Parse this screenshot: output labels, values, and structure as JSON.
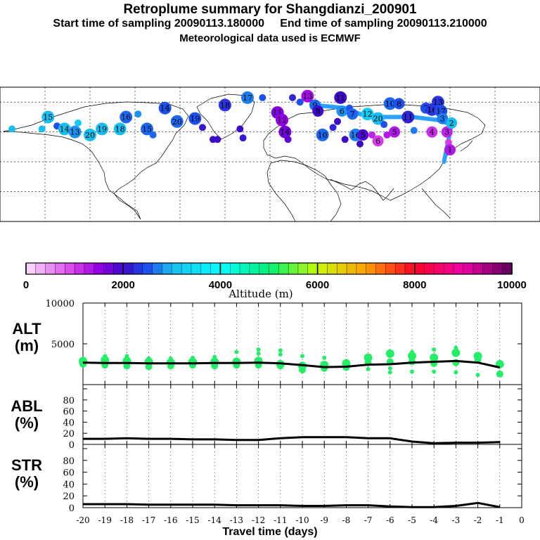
{
  "header": {
    "title": "Retroplume summary for Shangdianzi_200901",
    "line2": "Start time of sampling 20090113.180000     End time of sampling 20090113.210000",
    "line3": "Meteorological data used is ECMWF"
  },
  "map": {
    "markers": [
      {
        "lon": -172,
        "lat": 62,
        "alt": 3000,
        "label": ""
      },
      {
        "lon": -152,
        "lat": 62,
        "alt": 3000,
        "label": ""
      },
      {
        "lon": -148,
        "lat": 70,
        "alt": 3000,
        "label": "15"
      },
      {
        "lon": -142,
        "lat": 64,
        "alt": 2500,
        "label": ""
      },
      {
        "lon": -137,
        "lat": 62,
        "alt": 3000,
        "label": "14"
      },
      {
        "lon": -130,
        "lat": 60,
        "alt": 2800,
        "label": "13"
      },
      {
        "lon": -128,
        "lat": 66,
        "alt": 3200,
        "label": ""
      },
      {
        "lon": -120,
        "lat": 58,
        "alt": 3000,
        "label": "20"
      },
      {
        "lon": -112,
        "lat": 62,
        "alt": 3000,
        "label": "19"
      },
      {
        "lon": -100,
        "lat": 62,
        "alt": 3000,
        "label": "18"
      },
      {
        "lon": -96,
        "lat": 70,
        "alt": 2600,
        "label": "16"
      },
      {
        "lon": -88,
        "lat": 72,
        "alt": 2800,
        "label": ""
      },
      {
        "lon": -82,
        "lat": 62,
        "alt": 2600,
        "label": "15"
      },
      {
        "lon": -78,
        "lat": 58,
        "alt": 2600,
        "label": ""
      },
      {
        "lon": -70,
        "lat": 76,
        "alt": 2500,
        "label": "14"
      },
      {
        "lon": -62,
        "lat": 67,
        "alt": 2600,
        "label": "20"
      },
      {
        "lon": -50,
        "lat": 69,
        "alt": 2500,
        "label": "19"
      },
      {
        "lon": -45,
        "lat": 63,
        "alt": 2100,
        "label": ""
      },
      {
        "lon": -38,
        "lat": 55,
        "alt": 2000,
        "label": ""
      },
      {
        "lon": -35,
        "lat": 55,
        "alt": 2000,
        "label": ""
      },
      {
        "lon": -30,
        "lat": 78,
        "alt": 2300,
        "label": "18"
      },
      {
        "lon": -20,
        "lat": 62,
        "alt": 2000,
        "label": ""
      },
      {
        "lon": -18,
        "lat": 56,
        "alt": 2100,
        "label": ""
      },
      {
        "lon": -15,
        "lat": 83,
        "alt": 2700,
        "label": "17"
      },
      {
        "lon": -5,
        "lat": 83,
        "alt": 2500,
        "label": ""
      },
      {
        "lon": 5,
        "lat": 73,
        "alt": 1600,
        "label": "11"
      },
      {
        "lon": 8,
        "lat": 68,
        "alt": 1500,
        "label": "12"
      },
      {
        "lon": 10,
        "lat": 60,
        "alt": 1700,
        "label": "14"
      },
      {
        "lon": 12,
        "lat": 55,
        "alt": 1800,
        "label": ""
      },
      {
        "lon": 15,
        "lat": 83,
        "alt": 2200,
        "label": ""
      },
      {
        "lon": 20,
        "lat": 80,
        "alt": 2500,
        "label": ""
      },
      {
        "lon": 25,
        "lat": 84,
        "alt": 1400,
        "label": "13"
      },
      {
        "lon": 30,
        "lat": 78,
        "alt": 2600,
        "label": "9"
      },
      {
        "lon": 32,
        "lat": 74,
        "alt": 2000,
        "label": "8"
      },
      {
        "lon": 35,
        "lat": 58,
        "alt": 2600,
        "label": "10"
      },
      {
        "lon": 42,
        "lat": 63,
        "alt": 2200,
        "label": ""
      },
      {
        "lon": 45,
        "lat": 67,
        "alt": 2000,
        "label": ""
      },
      {
        "lon": 47,
        "lat": 83,
        "alt": 2000,
        "label": "11"
      },
      {
        "lon": 48,
        "lat": 74,
        "alt": 2800,
        "label": "6"
      },
      {
        "lon": 50,
        "lat": 55,
        "alt": 2000,
        "label": ""
      },
      {
        "lon": 53,
        "lat": 76,
        "alt": 2500,
        "label": ""
      },
      {
        "lon": 55,
        "lat": 72,
        "alt": 2600,
        "label": "7"
      },
      {
        "lon": 57,
        "lat": 58,
        "alt": 2700,
        "label": "16"
      },
      {
        "lon": 60,
        "lat": 52,
        "alt": 2000,
        "label": ""
      },
      {
        "lon": 62,
        "lat": 58,
        "alt": 1900,
        "label": "5"
      },
      {
        "lon": 65,
        "lat": 72,
        "alt": 3200,
        "label": "12"
      },
      {
        "lon": 68,
        "lat": 58,
        "alt": 1200,
        "label": ""
      },
      {
        "lon": 72,
        "lat": 54,
        "alt": 1000,
        "label": "6"
      },
      {
        "lon": 72,
        "lat": 69,
        "alt": 3000,
        "label": "20"
      },
      {
        "lon": 76,
        "lat": 65,
        "alt": 2500,
        "label": ""
      },
      {
        "lon": 78,
        "lat": 58,
        "alt": 1300,
        "label": ""
      },
      {
        "lon": 80,
        "lat": 79,
        "alt": 2600,
        "label": "10"
      },
      {
        "lon": 83,
        "lat": 60,
        "alt": 1300,
        "label": "5"
      },
      {
        "lon": 86,
        "lat": 79,
        "alt": 2500,
        "label": "8"
      },
      {
        "lon": 92,
        "lat": 70,
        "alt": 2200,
        "label": "11"
      },
      {
        "lon": 96,
        "lat": 61,
        "alt": 2700,
        "label": ""
      },
      {
        "lon": 104,
        "lat": 76,
        "alt": 2500,
        "label": "7"
      },
      {
        "lon": 108,
        "lat": 75,
        "alt": 2300,
        "label": "16"
      },
      {
        "lon": 108,
        "lat": 60,
        "alt": 1100,
        "label": "4"
      },
      {
        "lon": 112,
        "lat": 80,
        "alt": 2300,
        "label": "13"
      },
      {
        "lon": 114,
        "lat": 74,
        "alt": 2500,
        "label": "17"
      },
      {
        "lon": 115,
        "lat": 69,
        "alt": 2700,
        "label": "3"
      },
      {
        "lon": 118,
        "lat": 60,
        "alt": 1200,
        "label": "3"
      },
      {
        "lon": 119,
        "lat": 53,
        "alt": 1000,
        "label": ""
      },
      {
        "lon": 120,
        "lat": 48,
        "alt": 1300,
        "label": "1"
      },
      {
        "lon": 121,
        "lat": 66,
        "alt": 3000,
        "label": "2"
      }
    ],
    "track": [
      {
        "lon": 116,
        "lat": 40
      },
      {
        "lon": 121,
        "lat": 65
      },
      {
        "lon": 112,
        "lat": 68
      },
      {
        "lon": 95,
        "lat": 70
      },
      {
        "lon": 72,
        "lat": 70
      },
      {
        "lon": 60,
        "lat": 72
      },
      {
        "lon": 50,
        "lat": 76
      },
      {
        "lon": 30,
        "lat": 78
      }
    ]
  },
  "colorbar": {
    "ticks": [
      0,
      2000,
      4000,
      6000,
      8000,
      10000
    ],
    "tick_labels": [
      "0",
      "2000",
      "4000",
      "6000",
      "8000",
      "10000"
    ],
    "label": "Altitude (m)"
  },
  "chart_data": [
    {
      "type": "line",
      "panel": "ALT",
      "ylabel": "ALT\n(m)",
      "ylim": [
        0,
        10000
      ],
      "yticks": [
        0,
        5000,
        10000
      ],
      "ytick_labels": [
        "",
        "5000",
        "10000"
      ],
      "x": [
        -20,
        -19,
        -18,
        -17,
        -16,
        -15,
        -14,
        -13,
        -12,
        -11,
        -10,
        -9,
        -8,
        -7,
        -6,
        -5,
        -4,
        -3,
        -2,
        -1
      ],
      "mean": [
        2700,
        2650,
        2650,
        2600,
        2600,
        2600,
        2650,
        2650,
        2700,
        2600,
        2400,
        2150,
        2200,
        2450,
        2500,
        2700,
        2800,
        2900,
        2700,
        2100
      ],
      "scatter": [
        {
          "x": -20,
          "values": [
            2900,
            2500
          ]
        },
        {
          "x": -19,
          "values": [
            3000,
            2400,
            3500
          ]
        },
        {
          "x": -18,
          "values": [
            2900,
            2300,
            3500
          ]
        },
        {
          "x": -17,
          "values": [
            2800,
            2200,
            3200
          ]
        },
        {
          "x": -16,
          "values": [
            2700,
            2300,
            3200
          ]
        },
        {
          "x": -15,
          "values": [
            2800,
            2400,
            3300
          ]
        },
        {
          "x": -14,
          "values": [
            2800,
            2300,
            3400
          ]
        },
        {
          "x": -13,
          "values": [
            2800,
            2400,
            4000
          ]
        },
        {
          "x": -12,
          "values": [
            2900,
            2400,
            3800,
            4300
          ]
        },
        {
          "x": -11,
          "values": [
            2500,
            2300,
            3700,
            4200
          ]
        },
        {
          "x": -10,
          "values": [
            2300,
            1800,
            3500
          ]
        },
        {
          "x": -9,
          "values": [
            2400,
            2000,
            3300
          ]
        },
        {
          "x": -8,
          "values": [
            2600,
            2100,
            2900
          ]
        },
        {
          "x": -7,
          "values": [
            3300,
            2700,
            1900
          ]
        },
        {
          "x": -6,
          "values": [
            3800,
            2800,
            2000,
            1500
          ]
        },
        {
          "x": -5,
          "values": [
            3500,
            2800,
            1600,
            4000
          ]
        },
        {
          "x": -4,
          "values": [
            3300,
            2600,
            1600,
            4300
          ]
        },
        {
          "x": -3,
          "values": [
            3900,
            2700,
            1500,
            4500
          ]
        },
        {
          "x": -2,
          "values": [
            3500,
            3000,
            1200
          ]
        },
        {
          "x": -1,
          "values": [
            2500,
            1300
          ]
        }
      ]
    },
    {
      "type": "line",
      "panel": "ABL",
      "ylabel": "ABL\n(%)",
      "ylim": [
        0,
        100
      ],
      "yticks": [
        0,
        20,
        40,
        60,
        80,
        100
      ],
      "ytick_labels": [
        "0",
        "20",
        "40",
        "60",
        "80",
        ""
      ],
      "x": [
        -20,
        -19,
        -18,
        -17,
        -16,
        -15,
        -14,
        -13,
        -12,
        -11,
        -10,
        -9,
        -8,
        -7,
        -6,
        -5,
        -4,
        -3,
        -2,
        -1
      ],
      "values": [
        10,
        10,
        11,
        10,
        10,
        9,
        9,
        8,
        8,
        11,
        13,
        13,
        13,
        11,
        11,
        5,
        2,
        3,
        3,
        4
      ]
    },
    {
      "type": "line",
      "panel": "STR",
      "ylabel": "STR\n(%)",
      "ylim": [
        0,
        100
      ],
      "yticks": [
        0,
        20,
        40,
        60,
        80,
        100
      ],
      "ytick_labels": [
        "0",
        "20",
        "40",
        "60",
        "80",
        ""
      ],
      "x": [
        -20,
        -19,
        -18,
        -17,
        -16,
        -15,
        -14,
        -13,
        -12,
        -11,
        -10,
        -9,
        -8,
        -7,
        -6,
        -5,
        -4,
        -3,
        -2,
        -1
      ],
      "values": [
        6,
        6,
        6,
        5,
        5,
        5,
        5,
        4,
        4,
        4,
        3,
        3,
        4,
        4,
        2,
        1,
        1,
        3,
        8,
        1
      ],
      "xlabel": "Travel time (days)",
      "xtick_labels": [
        "-20",
        "-19",
        "-18",
        "-17",
        "-16",
        "-15",
        "-14",
        "-13",
        "-12",
        "-11",
        "-10",
        "-9",
        "-8",
        "-7",
        "-6",
        "-5",
        "-4",
        "-3",
        "-2",
        "-1",
        "0"
      ]
    }
  ]
}
